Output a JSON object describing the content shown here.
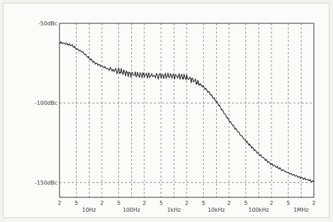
{
  "chart_data": {
    "type": "line",
    "title": "",
    "xlabel": "",
    "ylabel": "",
    "x_scale": "log",
    "x_range_hz": [
      2,
      2000000
    ],
    "y_range_dbc": [
      -150,
      -50
    ],
    "grid": "dashed",
    "x_tick_labels": [
      {
        "hz": 2,
        "label": "2"
      },
      {
        "hz": 5,
        "label": "5"
      },
      {
        "hz": 10,
        "label": "10Hz"
      },
      {
        "hz": 20,
        "label": "2"
      },
      {
        "hz": 50,
        "label": "5"
      },
      {
        "hz": 100,
        "label": "100Hz"
      },
      {
        "hz": 200,
        "label": "2"
      },
      {
        "hz": 500,
        "label": "5"
      },
      {
        "hz": 1000,
        "label": "1kHz"
      },
      {
        "hz": 2000,
        "label": "2"
      },
      {
        "hz": 5000,
        "label": "5"
      },
      {
        "hz": 10000,
        "label": "10kHz"
      },
      {
        "hz": 20000,
        "label": "2"
      },
      {
        "hz": 50000,
        "label": "5"
      },
      {
        "hz": 100000,
        "label": "100kHz"
      },
      {
        "hz": 200000,
        "label": "2"
      },
      {
        "hz": 500000,
        "label": "5"
      },
      {
        "hz": 1000000,
        "label": "1MHz"
      },
      {
        "hz": 2000000,
        "label": "2"
      }
    ],
    "y_tick_labels": [
      {
        "dbc": -50,
        "label": "-50dBc"
      },
      {
        "dbc": -100,
        "label": "-100dBc"
      },
      {
        "dbc": -150,
        "label": "-150dBc"
      }
    ],
    "series": [
      {
        "color": "#111111",
        "x": [
          2,
          3,
          4,
          5,
          7,
          10,
          14,
          20,
          30,
          50,
          70,
          100,
          150,
          200,
          300,
          500,
          700,
          1000,
          1500,
          2000,
          3000,
          4000,
          5000,
          6000,
          7000,
          8000,
          10000,
          12000,
          15000,
          20000,
          30000,
          50000,
          70000,
          100000,
          150000,
          200000,
          300000,
          500000,
          700000,
          1000000,
          1500000,
          2000000
        ],
        "y": [
          -62,
          -63,
          -64,
          -66,
          -68,
          -72,
          -75,
          -77,
          -79,
          -80,
          -81,
          -82,
          -82.5,
          -82.5,
          -83,
          -83,
          -83,
          -83,
          -83.5,
          -84,
          -86,
          -88,
          -90,
          -92,
          -94,
          -96,
          -99,
          -102,
          -106,
          -111,
          -117,
          -124,
          -128,
          -132,
          -136,
          -138.5,
          -141,
          -144,
          -145.5,
          -147,
          -148.5,
          -149.5
        ]
      }
    ]
  }
}
